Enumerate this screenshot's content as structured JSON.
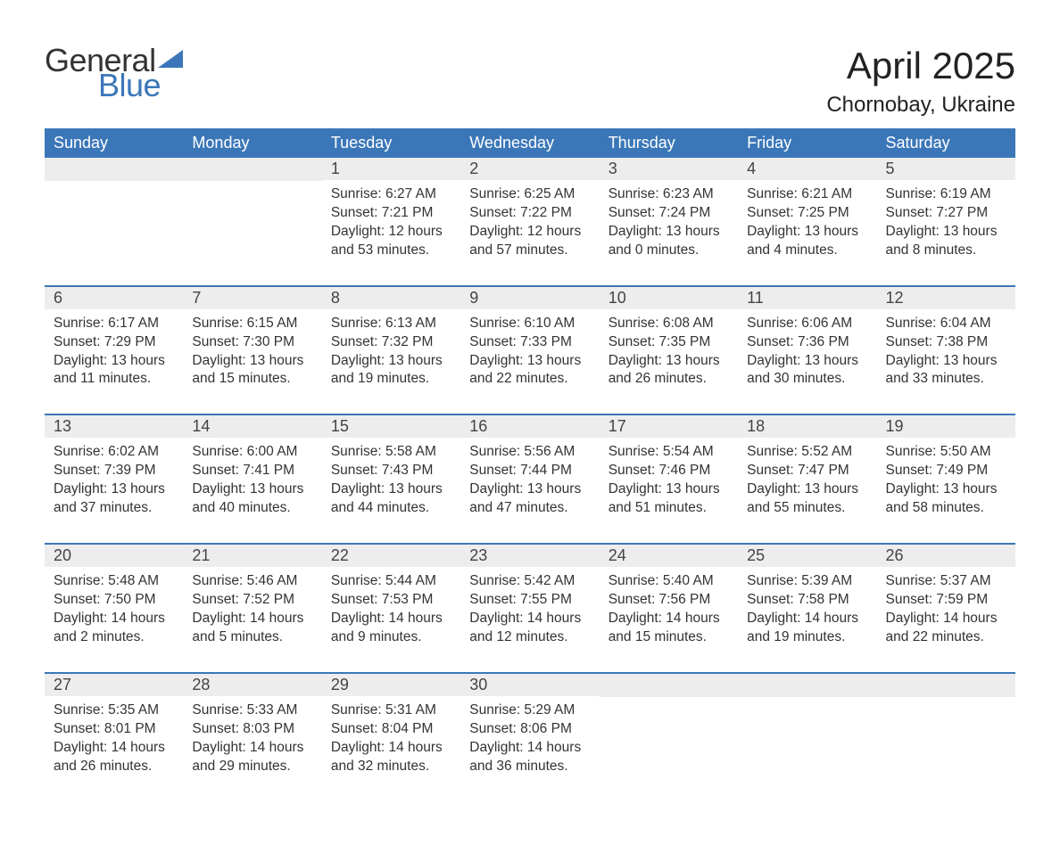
{
  "logo": {
    "text1": "General",
    "text2": "Blue"
  },
  "title": "April 2025",
  "location": "Chornobay, Ukraine",
  "colors": {
    "header_bg": "#3b77b8",
    "header_text": "#ffffff",
    "daynum_bg": "#ededed",
    "row_border": "#3b77b8",
    "body_text": "#333333",
    "title_text": "#222222",
    "logo_gray": "#333333",
    "logo_blue": "#3b77b8",
    "page_bg": "#ffffff"
  },
  "weekdays": [
    "Sunday",
    "Monday",
    "Tuesday",
    "Wednesday",
    "Thursday",
    "Friday",
    "Saturday"
  ],
  "weeks": [
    [
      null,
      null,
      {
        "n": "1",
        "sr": "6:27 AM",
        "ss": "7:21 PM",
        "dl": "12 hours and 53 minutes."
      },
      {
        "n": "2",
        "sr": "6:25 AM",
        "ss": "7:22 PM",
        "dl": "12 hours and 57 minutes."
      },
      {
        "n": "3",
        "sr": "6:23 AM",
        "ss": "7:24 PM",
        "dl": "13 hours and 0 minutes."
      },
      {
        "n": "4",
        "sr": "6:21 AM",
        "ss": "7:25 PM",
        "dl": "13 hours and 4 minutes."
      },
      {
        "n": "5",
        "sr": "6:19 AM",
        "ss": "7:27 PM",
        "dl": "13 hours and 8 minutes."
      }
    ],
    [
      {
        "n": "6",
        "sr": "6:17 AM",
        "ss": "7:29 PM",
        "dl": "13 hours and 11 minutes."
      },
      {
        "n": "7",
        "sr": "6:15 AM",
        "ss": "7:30 PM",
        "dl": "13 hours and 15 minutes."
      },
      {
        "n": "8",
        "sr": "6:13 AM",
        "ss": "7:32 PM",
        "dl": "13 hours and 19 minutes."
      },
      {
        "n": "9",
        "sr": "6:10 AM",
        "ss": "7:33 PM",
        "dl": "13 hours and 22 minutes."
      },
      {
        "n": "10",
        "sr": "6:08 AM",
        "ss": "7:35 PM",
        "dl": "13 hours and 26 minutes."
      },
      {
        "n": "11",
        "sr": "6:06 AM",
        "ss": "7:36 PM",
        "dl": "13 hours and 30 minutes."
      },
      {
        "n": "12",
        "sr": "6:04 AM",
        "ss": "7:38 PM",
        "dl": "13 hours and 33 minutes."
      }
    ],
    [
      {
        "n": "13",
        "sr": "6:02 AM",
        "ss": "7:39 PM",
        "dl": "13 hours and 37 minutes."
      },
      {
        "n": "14",
        "sr": "6:00 AM",
        "ss": "7:41 PM",
        "dl": "13 hours and 40 minutes."
      },
      {
        "n": "15",
        "sr": "5:58 AM",
        "ss": "7:43 PM",
        "dl": "13 hours and 44 minutes."
      },
      {
        "n": "16",
        "sr": "5:56 AM",
        "ss": "7:44 PM",
        "dl": "13 hours and 47 minutes."
      },
      {
        "n": "17",
        "sr": "5:54 AM",
        "ss": "7:46 PM",
        "dl": "13 hours and 51 minutes."
      },
      {
        "n": "18",
        "sr": "5:52 AM",
        "ss": "7:47 PM",
        "dl": "13 hours and 55 minutes."
      },
      {
        "n": "19",
        "sr": "5:50 AM",
        "ss": "7:49 PM",
        "dl": "13 hours and 58 minutes."
      }
    ],
    [
      {
        "n": "20",
        "sr": "5:48 AM",
        "ss": "7:50 PM",
        "dl": "14 hours and 2 minutes."
      },
      {
        "n": "21",
        "sr": "5:46 AM",
        "ss": "7:52 PM",
        "dl": "14 hours and 5 minutes."
      },
      {
        "n": "22",
        "sr": "5:44 AM",
        "ss": "7:53 PM",
        "dl": "14 hours and 9 minutes."
      },
      {
        "n": "23",
        "sr": "5:42 AM",
        "ss": "7:55 PM",
        "dl": "14 hours and 12 minutes."
      },
      {
        "n": "24",
        "sr": "5:40 AM",
        "ss": "7:56 PM",
        "dl": "14 hours and 15 minutes."
      },
      {
        "n": "25",
        "sr": "5:39 AM",
        "ss": "7:58 PM",
        "dl": "14 hours and 19 minutes."
      },
      {
        "n": "26",
        "sr": "5:37 AM",
        "ss": "7:59 PM",
        "dl": "14 hours and 22 minutes."
      }
    ],
    [
      {
        "n": "27",
        "sr": "5:35 AM",
        "ss": "8:01 PM",
        "dl": "14 hours and 26 minutes."
      },
      {
        "n": "28",
        "sr": "5:33 AM",
        "ss": "8:03 PM",
        "dl": "14 hours and 29 minutes."
      },
      {
        "n": "29",
        "sr": "5:31 AM",
        "ss": "8:04 PM",
        "dl": "14 hours and 32 minutes."
      },
      {
        "n": "30",
        "sr": "5:29 AM",
        "ss": "8:06 PM",
        "dl": "14 hours and 36 minutes."
      },
      null,
      null,
      null
    ]
  ],
  "labels": {
    "sunrise_prefix": "Sunrise: ",
    "sunset_prefix": "Sunset: ",
    "daylight_prefix": "Daylight: "
  }
}
